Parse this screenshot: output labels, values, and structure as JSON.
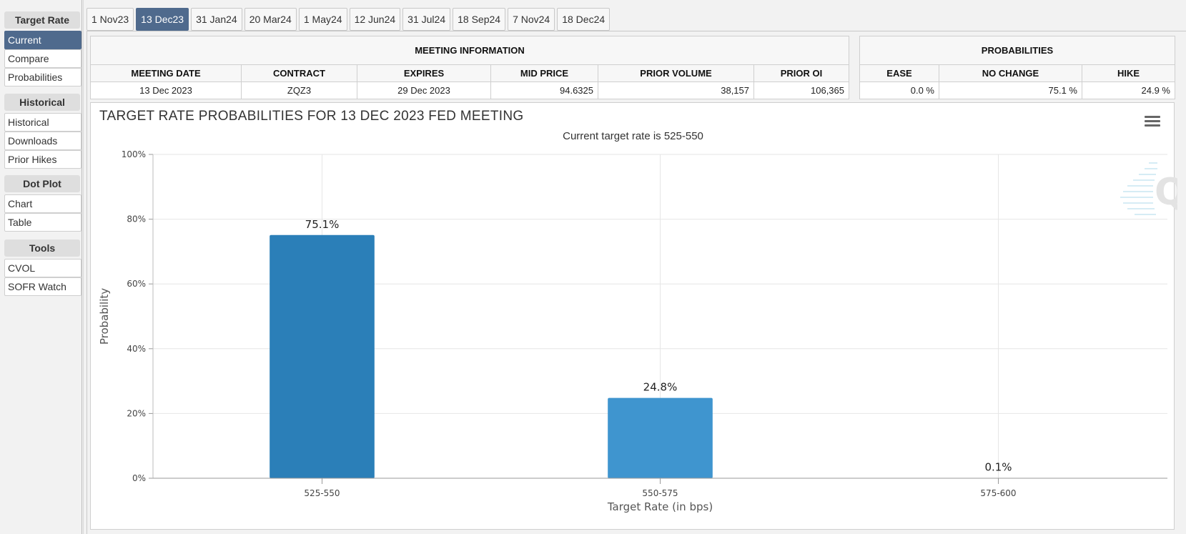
{
  "sidebar": {
    "sections": [
      {
        "title": "Target Rate",
        "items": [
          "Current",
          "Compare",
          "Probabilities"
        ]
      },
      {
        "title": "Historical",
        "items": [
          "Historical",
          "Downloads",
          "Prior Hikes"
        ]
      },
      {
        "title": "Dot Plot",
        "items": [
          "Chart",
          "Table"
        ]
      },
      {
        "title": "Tools",
        "items": [
          "CVOL",
          "SOFR Watch"
        ]
      }
    ],
    "active_item": "Current"
  },
  "tabs": [
    "1 Nov23",
    "13 Dec23",
    "31 Jan24",
    "20 Mar24",
    "1 May24",
    "12 Jun24",
    "31 Jul24",
    "18 Sep24",
    "7 Nov24",
    "18 Dec24"
  ],
  "active_tab": "13 Dec23",
  "meeting_info": {
    "title": "MEETING INFORMATION",
    "headers": [
      "MEETING DATE",
      "CONTRACT",
      "EXPIRES",
      "MID PRICE",
      "PRIOR VOLUME",
      "PRIOR OI"
    ],
    "values": [
      "13 Dec 2023",
      "ZQZ3",
      "29 Dec 2023",
      "94.6325",
      "38,157",
      "106,365"
    ]
  },
  "probabilities": {
    "title": "PROBABILITIES",
    "headers": [
      "EASE",
      "NO CHANGE",
      "HIKE"
    ],
    "values": [
      "0.0 %",
      "75.1 %",
      "24.9 %"
    ]
  },
  "colors": {
    "accent": "#4f6a8d",
    "bar_dark": "#2b7fb8",
    "bar_light": "#3f95cf"
  },
  "chart_data": {
    "type": "bar",
    "title": "TARGET RATE PROBABILITIES FOR 13 DEC 2023 FED MEETING",
    "subtitle": "Current target rate is 525-550",
    "xlabel": "Target Rate (in bps)",
    "ylabel": "Probability",
    "categories": [
      "525-550",
      "550-575",
      "575-600"
    ],
    "values": [
      75.1,
      24.8,
      0.1
    ],
    "data_labels": [
      "75.1%",
      "24.8%",
      "0.1%"
    ],
    "bar_colors": [
      "#2b7fb8",
      "#3f95cf",
      "#3f95cf"
    ],
    "ylim": [
      0,
      100
    ],
    "yticks": [
      0,
      20,
      40,
      60,
      80,
      100
    ],
    "ytick_labels": [
      "0%",
      "20%",
      "40%",
      "60%",
      "80%",
      "100%"
    ],
    "grid": true
  }
}
